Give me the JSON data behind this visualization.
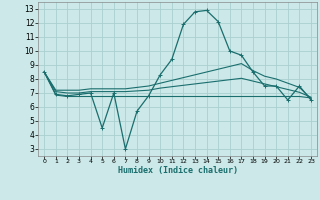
{
  "xlabel": "Humidex (Indice chaleur)",
  "bg_color": "#cce8e8",
  "grid_color": "#aad0d0",
  "line_color": "#1a6e6e",
  "x_ticks": [
    0,
    1,
    2,
    3,
    4,
    5,
    6,
    7,
    8,
    9,
    10,
    11,
    12,
    13,
    14,
    15,
    16,
    17,
    18,
    19,
    20,
    21,
    22,
    23
  ],
  "y_ticks": [
    3,
    4,
    5,
    6,
    7,
    8,
    9,
    10,
    11,
    12,
    13
  ],
  "ylim": [
    2.5,
    13.5
  ],
  "xlim": [
    -0.5,
    23.5
  ],
  "series": [
    {
      "y": [
        8.5,
        6.9,
        6.8,
        6.9,
        7.0,
        4.5,
        7.0,
        3.0,
        5.7,
        6.8,
        8.3,
        9.4,
        11.9,
        12.8,
        12.9,
        12.1,
        10.0,
        9.7,
        8.5,
        7.5,
        7.5,
        6.5,
        7.5,
        6.5
      ],
      "marker": "+"
    },
    {
      "y": [
        8.5,
        7.2,
        7.2,
        7.2,
        7.3,
        7.3,
        7.3,
        7.3,
        7.4,
        7.5,
        7.7,
        7.9,
        8.1,
        8.3,
        8.5,
        8.7,
        8.9,
        9.1,
        8.6,
        8.2,
        8.0,
        7.7,
        7.4,
        6.6
      ],
      "marker": null
    },
    {
      "y": [
        8.5,
        7.1,
        7.0,
        7.0,
        7.1,
        7.1,
        7.1,
        7.1,
        7.15,
        7.2,
        7.35,
        7.45,
        7.55,
        7.65,
        7.75,
        7.85,
        7.95,
        8.05,
        7.85,
        7.65,
        7.45,
        7.25,
        7.05,
        6.7
      ],
      "marker": null
    },
    {
      "y": [
        8.5,
        6.85,
        6.75,
        6.75,
        6.75,
        6.75,
        6.75,
        6.75,
        6.75,
        6.75,
        6.75,
        6.75,
        6.75,
        6.75,
        6.75,
        6.75,
        6.75,
        6.75,
        6.75,
        6.75,
        6.75,
        6.75,
        6.75,
        6.65
      ],
      "marker": null
    }
  ]
}
